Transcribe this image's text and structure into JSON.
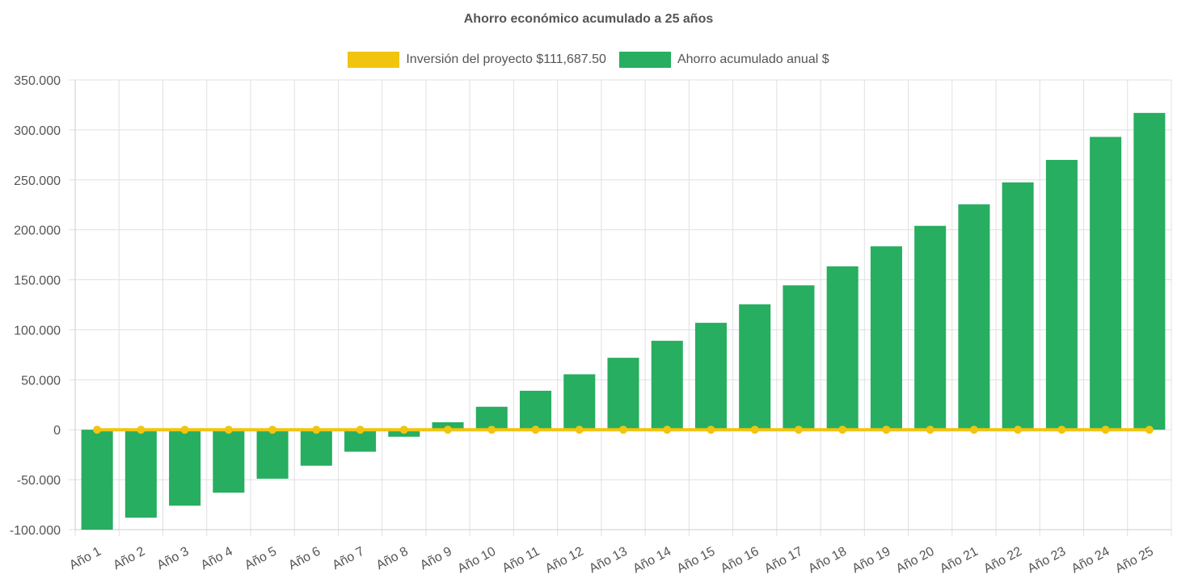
{
  "chart_data": {
    "type": "bar",
    "title": "Ahorro económico acumulado a 25 años",
    "categories": [
      "Año 1",
      "Año 2",
      "Año 3",
      "Año 4",
      "Año 5",
      "Año 6",
      "Año 7",
      "Año 8",
      "Año 9",
      "Año 10",
      "Año 11",
      "Año 12",
      "Año 13",
      "Año 14",
      "Año 15",
      "Año 16",
      "Año 17",
      "Año 18",
      "Año 19",
      "Año 20",
      "Año 21",
      "Año 22",
      "Año 23",
      "Año 24",
      "Año 25"
    ],
    "series": [
      {
        "name": "Inversión del proyecto $111,687.50",
        "type": "line",
        "color": "#f1c40f",
        "values": [
          0,
          0,
          0,
          0,
          0,
          0,
          0,
          0,
          0,
          0,
          0,
          0,
          0,
          0,
          0,
          0,
          0,
          0,
          0,
          0,
          0,
          0,
          0,
          0,
          0
        ]
      },
      {
        "name": "Ahorro acumulado anual $",
        "type": "bar",
        "color": "#27ae60",
        "values": [
          -100000,
          -88000,
          -76000,
          -63000,
          -49000,
          -36000,
          -22000,
          -7000,
          7500,
          23000,
          39000,
          55500,
          72000,
          89000,
          107000,
          125500,
          144500,
          163500,
          183500,
          204000,
          225500,
          247500,
          270000,
          293000,
          317000
        ]
      }
    ],
    "yticks": [
      "350.000",
      "300.000",
      "250.000",
      "200.000",
      "150.000",
      "100.000",
      "50.000",
      "0",
      "-50.000",
      "-100.000"
    ],
    "ylim": [
      -100000,
      350000
    ],
    "grid": true,
    "legend_position": "top"
  }
}
